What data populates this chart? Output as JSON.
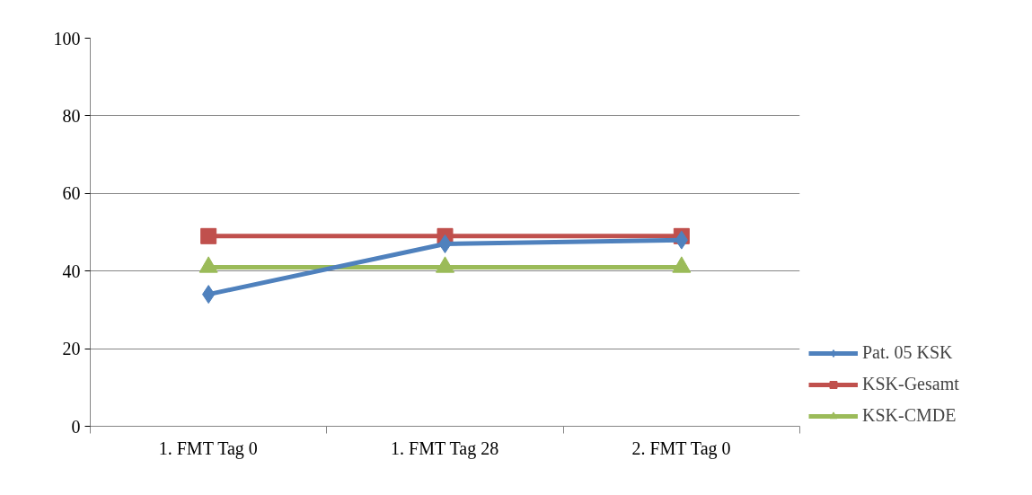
{
  "chart_data": {
    "type": "line",
    "categories": [
      "1. FMT Tag 0",
      "1. FMT Tag 28",
      "2. FMT Tag 0"
    ],
    "series": [
      {
        "name": "Pat. 05 KSK",
        "color": "#4f81bd",
        "marker": "diamond",
        "values": [
          34,
          47,
          48
        ]
      },
      {
        "name": "KSK-Gesamt",
        "color": "#c0504d",
        "marker": "square",
        "values": [
          49,
          49,
          49
        ]
      },
      {
        "name": "KSK-CMDE",
        "color": "#9bbb59",
        "marker": "triangle",
        "values": [
          41,
          41,
          41
        ]
      }
    ],
    "ylim": [
      0,
      100
    ],
    "yticks": [
      0,
      20,
      40,
      60,
      80,
      100
    ],
    "grid": "y",
    "legend": "right",
    "line_style": "solid"
  }
}
